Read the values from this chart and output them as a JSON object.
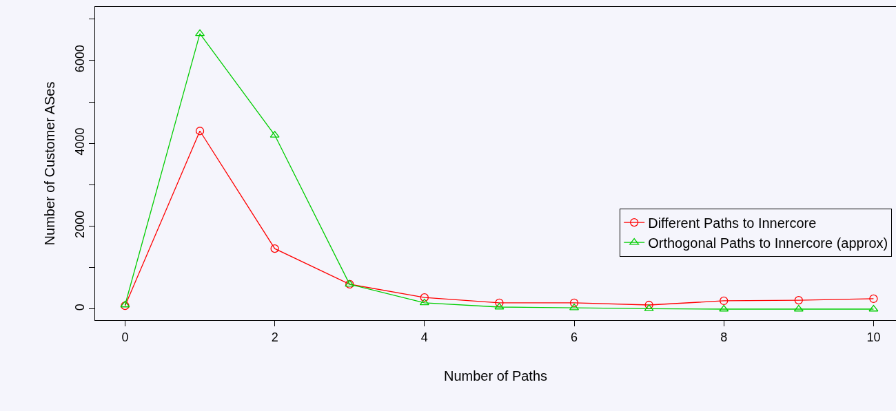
{
  "chart_data": {
    "type": "line",
    "xlabel": "Number of Paths",
    "ylabel": "Number of Customer ASes",
    "x": [
      0,
      1,
      2,
      3,
      4,
      5,
      6,
      7,
      8,
      9,
      10
    ],
    "series": [
      {
        "name": "Different Paths to Innercore",
        "color": "#ff0000",
        "marker": "circle",
        "values": [
          80,
          4300,
          1460,
          600,
          280,
          150,
          150,
          100,
          200,
          215,
          250
        ]
      },
      {
        "name": "Orthogonal Paths to Innercore (approx)",
        "color": "#00cd00",
        "marker": "triangle",
        "values": [
          100,
          6650,
          4200,
          600,
          150,
          50,
          30,
          10,
          0,
          0,
          0
        ]
      }
    ],
    "xlim": [
      -0.4,
      10.3
    ],
    "xticks": [
      0,
      2,
      4,
      6,
      8,
      10
    ],
    "ylim": [
      -266,
      7296
    ],
    "yticks": [
      0,
      {
        "value": 1000,
        "label": null
      },
      2000,
      {
        "value": 3000,
        "label": null
      },
      4000,
      {
        "value": 5000,
        "label": null
      },
      6000,
      {
        "value": 7000,
        "label": null
      }
    ],
    "grid": false,
    "legend": "right",
    "line_style": "solid"
  }
}
